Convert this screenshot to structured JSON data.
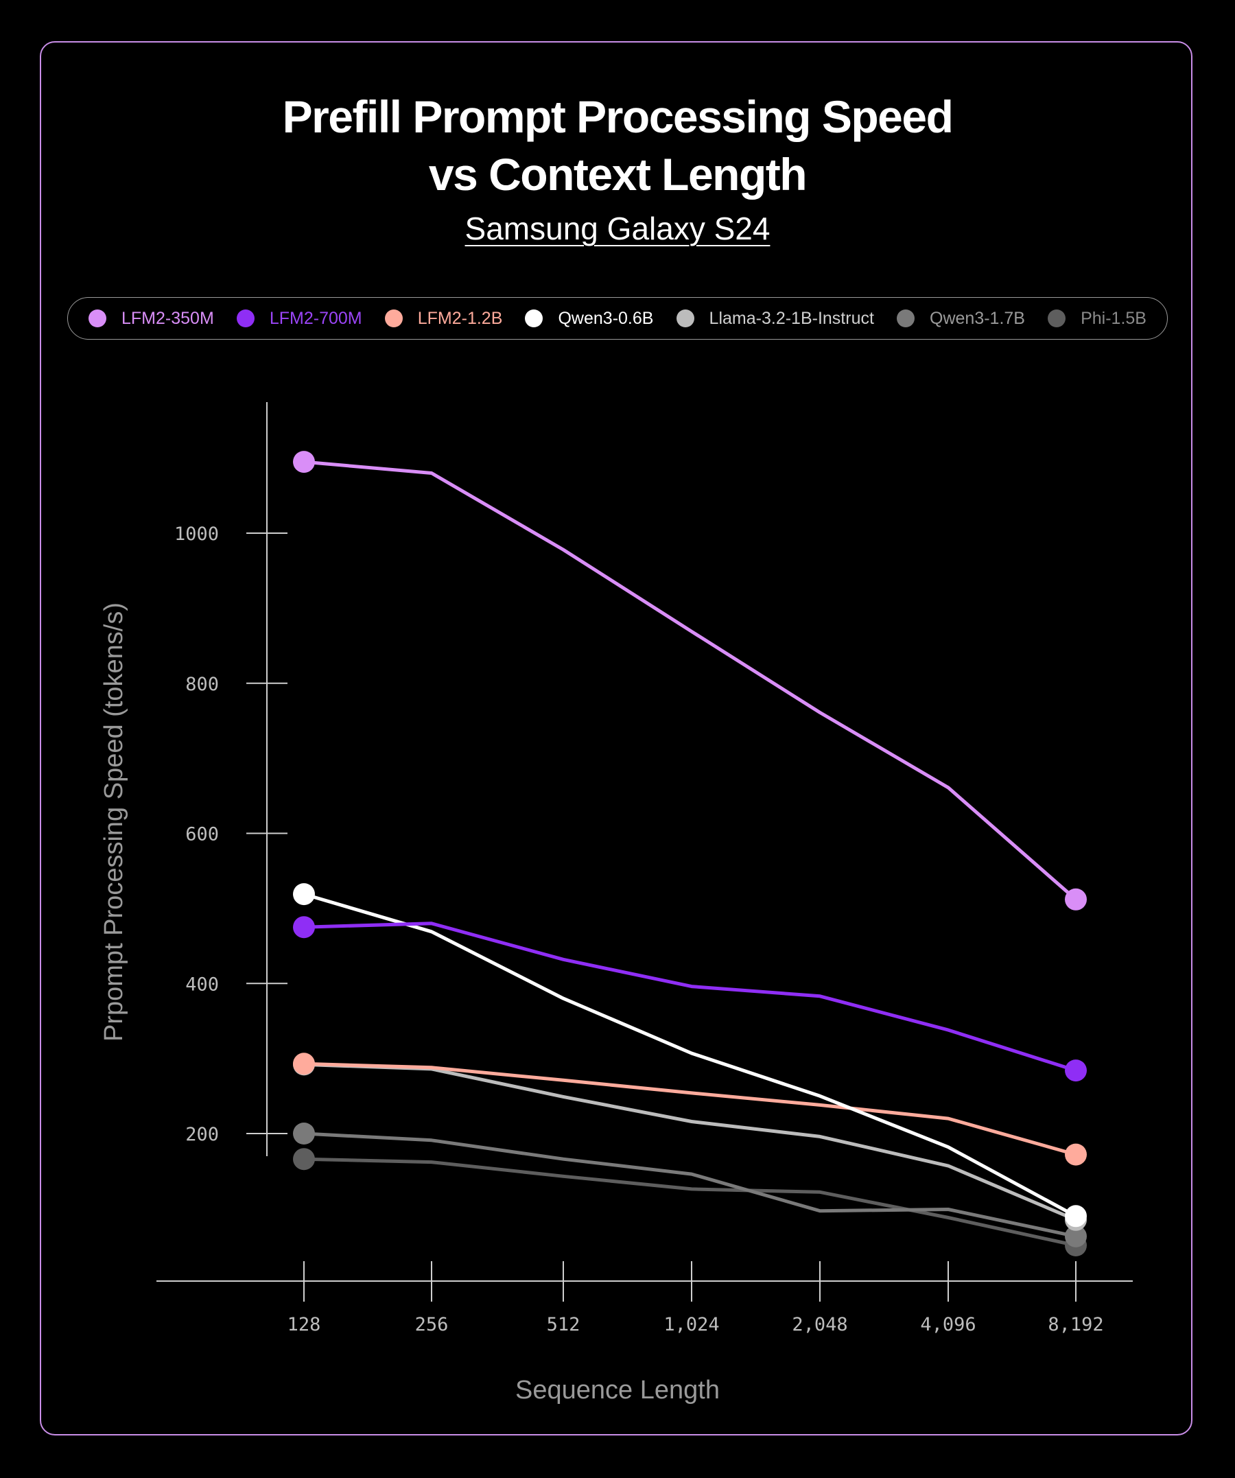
{
  "chart_data": {
    "type": "line",
    "title_line1": "Prefill Prompt Processing Speed",
    "title_line2": "vs Context Length",
    "subtitle": "Samsung Galaxy S24",
    "xlabel": "Sequence Length",
    "ylabel": "Prpompt Processing Speed (tokens/s)",
    "categories": [
      "128",
      "256",
      "512",
      "1,024",
      "2,048",
      "4,096",
      "8,192"
    ],
    "y_ticks": [
      200,
      400,
      600,
      800,
      1000
    ],
    "y_tick_labels": [
      "200",
      "400",
      "600",
      "800",
      "1000"
    ],
    "ylim": [
      0,
      1180
    ],
    "series": [
      {
        "name": "LFM2-350M",
        "color": "#d98ef7",
        "values": [
          1095,
          1080,
          978,
          869,
          761,
          661,
          512
        ]
      },
      {
        "name": "LFM2-700M",
        "color": "#8f2ef5",
        "values": [
          475,
          480,
          432,
          396,
          383,
          338,
          284
        ]
      },
      {
        "name": "LFM2-1.2B",
        "color": "#ffab9c",
        "values": [
          293,
          288,
          271,
          254,
          238,
          220,
          172
        ]
      },
      {
        "name": "Qwen3-0.6B",
        "color": "#ffffff",
        "values": [
          519,
          469,
          380,
          307,
          250,
          182,
          90
        ]
      },
      {
        "name": "Llama-3.2-1B-Instruct",
        "color": "#bcbcbc",
        "values": [
          292,
          286,
          249,
          216,
          196,
          157,
          85
        ]
      },
      {
        "name": "Qwen3-1.7B",
        "color": "#7a7a7a",
        "values": [
          200,
          191,
          166,
          146,
          97,
          99,
          63
        ]
      },
      {
        "name": "Phi-1.5B",
        "color": "#5e5e5e",
        "values": [
          166,
          162,
          143,
          126,
          122,
          88,
          51
        ]
      }
    ],
    "legend_text_colors": [
      "#d98ef7",
      "#9b45f7",
      "#ffab9c",
      "#ffffff",
      "#d0d0d0",
      "#9a9a9a",
      "#8a8a8a"
    ]
  }
}
